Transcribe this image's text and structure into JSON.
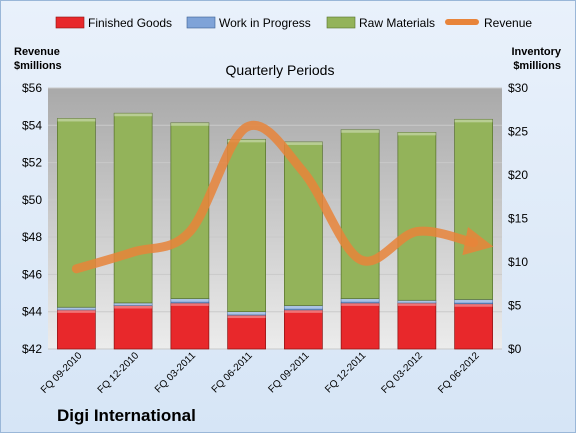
{
  "chart_data": {
    "type": "bar",
    "stacked": true,
    "company": "Digi International",
    "subtitle": "Quarterly Periods",
    "categories": [
      "FQ 09-2010",
      "FQ 12-2010",
      "FQ 03-2011",
      "FQ 06-2011",
      "FQ 09-2011",
      "FQ 12-2011",
      "FQ 03-2012",
      "FQ 06-2012"
    ],
    "left_axis": {
      "label_line1": "Revenue",
      "label_line2": "$millions",
      "min": 42,
      "max": 56,
      "step": 2,
      "prefix": "$"
    },
    "right_axis": {
      "label_line1": "Inventory",
      "label_line2": "$millions",
      "min": 0,
      "max": 30,
      "step": 5,
      "prefix": "$"
    },
    "series": [
      {
        "name": "Finished Goods",
        "type": "bar",
        "axis": "right",
        "color": "#e8282b",
        "values": [
          4.5,
          5.0,
          5.3,
          3.9,
          4.5,
          5.3,
          5.3,
          5.2
        ]
      },
      {
        "name": "Work in Progress",
        "type": "bar",
        "axis": "right",
        "color": "#7fa3d8",
        "values": [
          0.3,
          0.3,
          0.5,
          0.4,
          0.5,
          0.5,
          0.3,
          0.5
        ]
      },
      {
        "name": "Raw Materials",
        "type": "bar",
        "axis": "right",
        "color": "#93b35a",
        "values": [
          21.7,
          21.8,
          20.2,
          19.8,
          18.8,
          19.4,
          19.3,
          20.7
        ]
      },
      {
        "name": "Revenue",
        "type": "line",
        "axis": "left",
        "color": "#e8843a",
        "values": [
          46.3,
          47.2,
          48.3,
          53.9,
          51.5,
          46.8,
          48.3,
          47.7
        ]
      }
    ],
    "grid": true,
    "legend_position": "top"
  }
}
